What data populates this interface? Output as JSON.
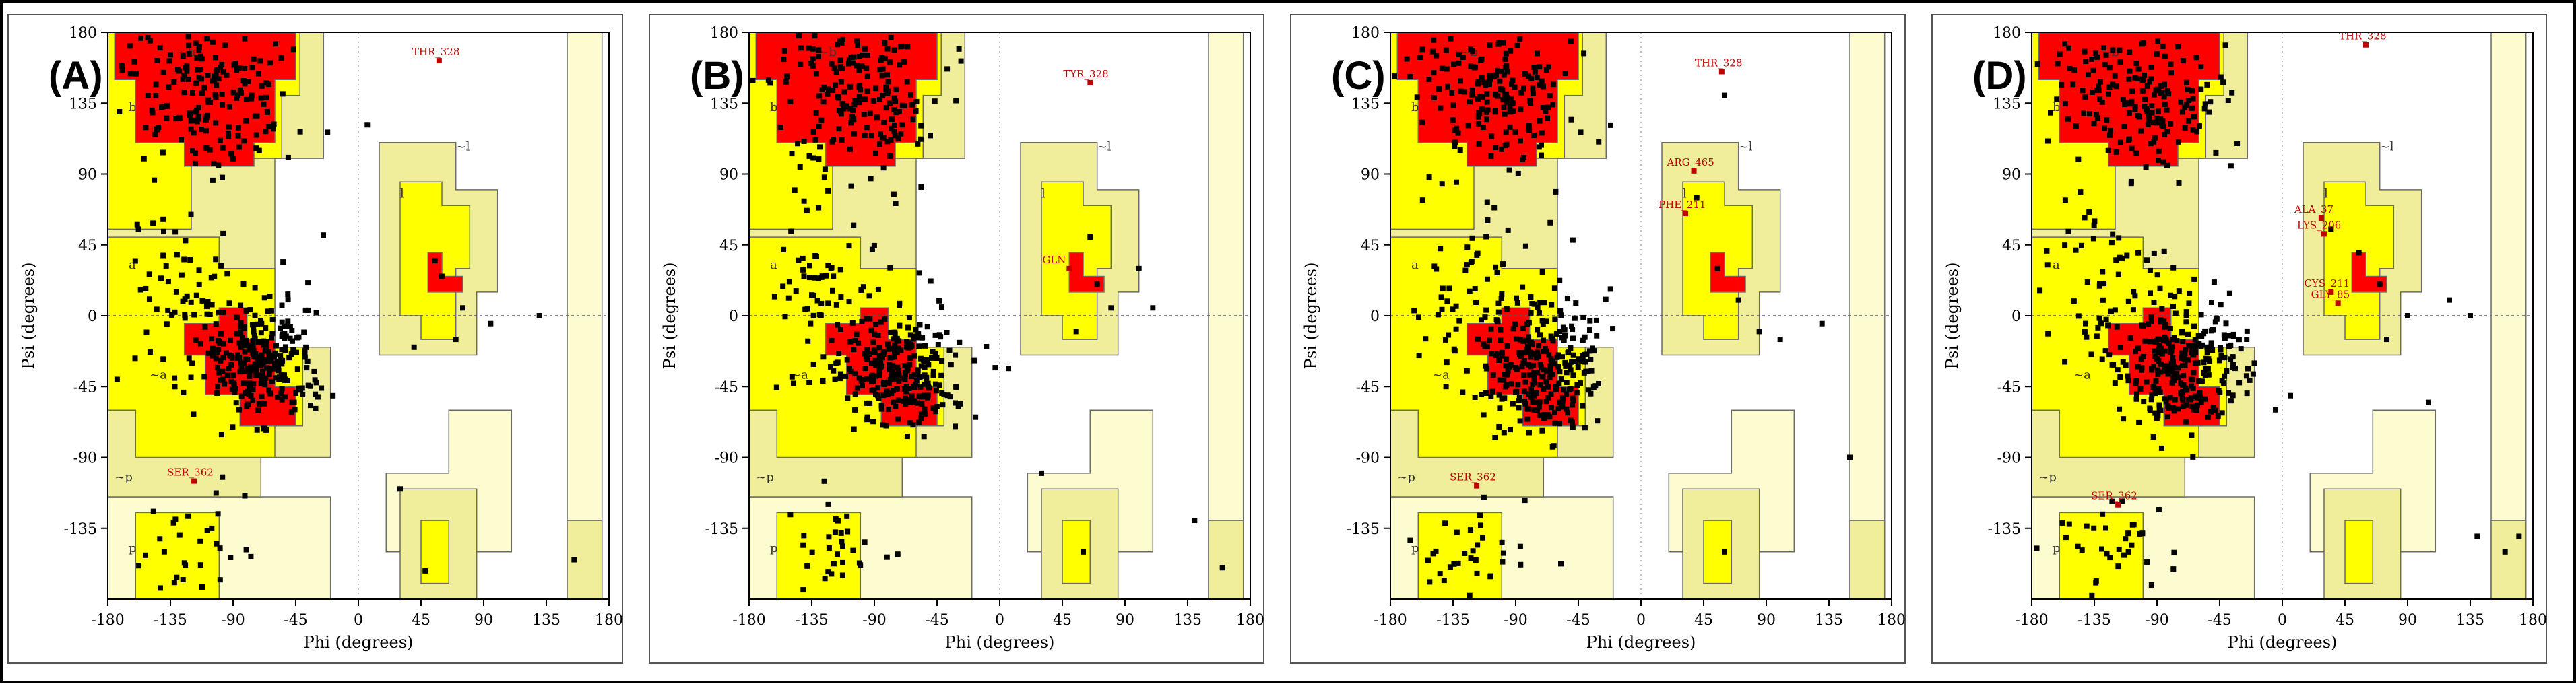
{
  "figure": {
    "panels": [
      "(A)",
      "(B)",
      "(C)",
      "(D)"
    ]
  },
  "colors": {
    "core": "#ff0000",
    "allowed": "#ffff00",
    "generous": "#f0ee9a",
    "outer": "#fdfbd0",
    "point": "#000000",
    "label": "#c00000"
  },
  "chart_data": [
    {
      "type": "scatter",
      "title": "(A)",
      "xlabel": "Phi (degrees)",
      "ylabel": "Psi (degrees)",
      "xlim": [
        -180,
        180
      ],
      "ylim": [
        -180,
        180
      ],
      "xticks": [
        "-180",
        "-135",
        "-90",
        "-45",
        "0",
        "45",
        "90",
        "135",
        "180"
      ],
      "yticks": [
        "180",
        "135",
        "90",
        "45",
        "0",
        "-45",
        "-90",
        "-135"
      ],
      "region_labels": [
        "b",
        "a",
        "l",
        "p",
        "~b",
        "~a",
        "~l",
        "~p"
      ],
      "residue_labels": [
        {
          "text": "THR_328",
          "phi": 58,
          "psi": 162
        },
        {
          "text": "SER_362",
          "phi": -118,
          "psi": -105
        }
      ],
      "outliers": [
        {
          "phi": 55,
          "psi": 35
        },
        {
          "phi": 60,
          "psi": 25
        },
        {
          "phi": 75,
          "psi": 5
        },
        {
          "phi": 95,
          "psi": -5
        },
        {
          "phi": 70,
          "psi": -15
        },
        {
          "phi": 130,
          "psi": 0
        },
        {
          "phi": 40,
          "psi": -20
        },
        {
          "phi": 48,
          "psi": -162
        },
        {
          "phi": 155,
          "psi": -155
        },
        {
          "phi": 30,
          "psi": -110
        }
      ]
    },
    {
      "type": "scatter",
      "title": "(B)",
      "xlabel": "Phi (degrees)",
      "ylabel": "Psi (degrees)",
      "xlim": [
        -180,
        180
      ],
      "ylim": [
        -180,
        180
      ],
      "xticks": [
        "-180",
        "-135",
        "-90",
        "-45",
        "0",
        "45",
        "90",
        "135",
        "180"
      ],
      "yticks": [
        "180",
        "135",
        "90",
        "45",
        "0",
        "-45",
        "-90",
        "-135"
      ],
      "region_labels": [
        "b",
        "a",
        "l",
        "p",
        "~b",
        "~a",
        "~l",
        "~p"
      ],
      "residue_labels": [
        {
          "text": "TYR_328",
          "phi": 65,
          "psi": 148
        },
        {
          "text": "GLN",
          "phi": 50,
          "psi": 30
        }
      ],
      "outliers": [
        {
          "phi": 65,
          "psi": 50
        },
        {
          "phi": 70,
          "psi": 20
        },
        {
          "phi": 80,
          "psi": 5
        },
        {
          "phi": 110,
          "psi": 5
        },
        {
          "phi": 100,
          "psi": 30
        },
        {
          "phi": 55,
          "psi": -10
        },
        {
          "phi": 30,
          "psi": -100
        },
        {
          "phi": 60,
          "psi": -150
        },
        {
          "phi": 160,
          "psi": -160
        },
        {
          "phi": 140,
          "psi": -130
        }
      ]
    },
    {
      "type": "scatter",
      "title": "(C)",
      "xlabel": "Phi (degrees)",
      "ylabel": "Psi (degrees)",
      "xlim": [
        -180,
        180
      ],
      "ylim": [
        -180,
        180
      ],
      "xticks": [
        "-180",
        "-135",
        "-90",
        "-45",
        "0",
        "45",
        "90",
        "135",
        "180"
      ],
      "yticks": [
        "180",
        "135",
        "90",
        "45",
        "0",
        "-45",
        "-90",
        "-135"
      ],
      "region_labels": [
        "b",
        "a",
        "l",
        "p",
        "~b",
        "~a",
        "~l",
        "~p"
      ],
      "residue_labels": [
        {
          "text": "THR_328",
          "phi": 58,
          "psi": 155
        },
        {
          "text": "ARG_465",
          "phi": 38,
          "psi": 92
        },
        {
          "text": "PHE_211",
          "phi": 32,
          "psi": 65
        },
        {
          "text": "SER_362",
          "phi": -118,
          "psi": -108
        }
      ],
      "outliers": [
        {
          "phi": 60,
          "psi": 140
        },
        {
          "phi": 40,
          "psi": 75
        },
        {
          "phi": 55,
          "psi": 30
        },
        {
          "phi": 70,
          "psi": 10
        },
        {
          "phi": 85,
          "psi": -10
        },
        {
          "phi": 130,
          "psi": -5
        },
        {
          "phi": 60,
          "psi": -150
        },
        {
          "phi": 150,
          "psi": -90
        },
        {
          "phi": 100,
          "psi": -15
        }
      ]
    },
    {
      "type": "scatter",
      "title": "(D)",
      "xlabel": "Phi (degrees)",
      "ylabel": "Psi (degrees)",
      "xlim": [
        -180,
        180
      ],
      "ylim": [
        -180,
        180
      ],
      "xticks": [
        "-180",
        "-135",
        "-90",
        "-45",
        "0",
        "45",
        "90",
        "135",
        "180"
      ],
      "yticks": [
        "180",
        "135",
        "90",
        "45",
        "0",
        "-45",
        "-90",
        "-135"
      ],
      "region_labels": [
        "b",
        "a",
        "l",
        "p",
        "~b",
        "~a",
        "~l",
        "~p"
      ],
      "residue_labels": [
        {
          "text": "THR_328",
          "phi": 60,
          "psi": 172
        },
        {
          "text": "ALA_37",
          "phi": 28,
          "psi": 62
        },
        {
          "text": "LYS_206",
          "phi": 30,
          "psi": 52
        },
        {
          "text": "CYS_211",
          "phi": 35,
          "psi": 15
        },
        {
          "text": "GLY_85",
          "phi": 40,
          "psi": 8
        },
        {
          "text": "SER_362",
          "phi": -118,
          "psi": -120
        }
      ],
      "outliers": [
        {
          "phi": 35,
          "psi": 55
        },
        {
          "phi": 55,
          "psi": 40
        },
        {
          "phi": 70,
          "psi": 20
        },
        {
          "phi": 90,
          "psi": 0
        },
        {
          "phi": 75,
          "psi": -15
        },
        {
          "phi": 120,
          "psi": 10
        },
        {
          "phi": 135,
          "psi": 0
        },
        {
          "phi": 160,
          "psi": -150
        },
        {
          "phi": 170,
          "psi": -140
        },
        {
          "phi": 140,
          "psi": -140
        },
        {
          "phi": 105,
          "psi": -55
        }
      ]
    }
  ]
}
